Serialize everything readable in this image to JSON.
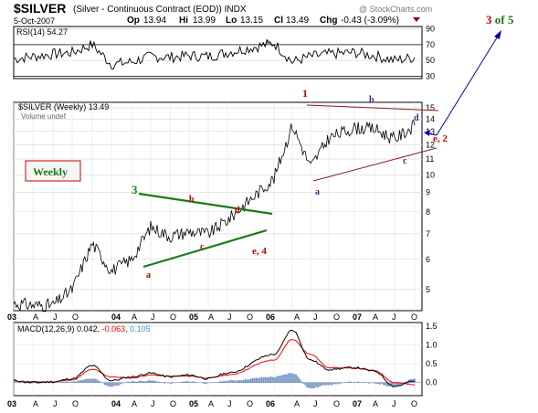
{
  "header": {
    "title": "$SILVER",
    "subtitle": "(Silver - Continuous Contract (EOD)) INDX",
    "watermark": "@ StockCharts.com",
    "date": "5-Oct-2007",
    "op_label": "Op",
    "op": "13.94",
    "hi_label": "Hi",
    "hi": "13.99",
    "lo_label": "Lo",
    "lo": "13.15",
    "cl_label": "Cl",
    "cl": "13.49",
    "chg_label": "Chg",
    "chg": "-0.43 (-3.09%)"
  },
  "rsi": {
    "legend": "RSI(14) 54.27",
    "ticks": [
      "90",
      "70",
      "50",
      "30"
    ]
  },
  "price": {
    "legend": "$SILVER (Weekly) 13.49",
    "volume_legend": "Volume undef",
    "ticks": [
      "15",
      "14",
      "13",
      "12",
      "11",
      "10",
      "9",
      "8",
      "7",
      "6",
      "5"
    ],
    "weekly_label": "Weekly"
  },
  "macd": {
    "legend_name": "MACD(12,26,9)",
    "legend_v1": "0.042,",
    "legend_v2": "-0.063,",
    "legend_v3": "0.105",
    "ticks": [
      "1.5",
      "1.0",
      "0.5",
      "0.0"
    ]
  },
  "xaxis": {
    "labels": [
      "03",
      "A",
      "J",
      "O",
      "04",
      "A",
      "J",
      "O",
      "05",
      "A",
      "J",
      "O",
      "06",
      "A",
      "J",
      "O",
      "07",
      "A",
      "J",
      "O"
    ]
  },
  "wave_labels": {
    "three": "3",
    "b1": "b",
    "d1": "d",
    "c1": "c",
    "a1": "a",
    "e4": "e, 4",
    "one": "1",
    "b2": "b",
    "d2": "d",
    "a2": "a",
    "c2": "c",
    "e2": "e, 2",
    "target_num": "3",
    "target_rest": " of 5"
  },
  "colors": {
    "wave_red": "#cc0000",
    "wave_green": "#1a7a1a",
    "wave_purple": "#551a8b",
    "arrow_blue": "#0000aa",
    "macd_red": "#ff0000",
    "macd_blue": "#3399cc",
    "hist": "#6f8fc0",
    "rsi_fill": "#5a9a5a"
  },
  "chart_data": [
    {
      "type": "line",
      "name": "RSI",
      "title": "RSI(14) 54.27",
      "ylim": [
        30,
        90
      ],
      "reference_lines": [
        70,
        30
      ],
      "x": [
        "03",
        "A",
        "J",
        "O",
        "04",
        "A",
        "J",
        "O",
        "05",
        "A",
        "J",
        "O",
        "06",
        "A",
        "J",
        "O",
        "07",
        "A",
        "J",
        "O"
      ],
      "values": [
        52,
        55,
        58,
        60,
        70,
        45,
        48,
        55,
        54,
        56,
        55,
        60,
        72,
        48,
        55,
        58,
        60,
        56,
        50,
        54
      ]
    },
    {
      "type": "line",
      "title": "$SILVER (Weekly) 13.49",
      "ylim": [
        4.4,
        15.5
      ],
      "log_scale": true,
      "x": [
        "03",
        "A",
        "J",
        "O",
        "04",
        "A",
        "J",
        "O",
        "05",
        "A",
        "J",
        "O",
        "06",
        "A",
        "J",
        "O",
        "07",
        "A",
        "J",
        "O"
      ],
      "values": [
        4.6,
        4.55,
        4.55,
        5.0,
        6.6,
        5.6,
        6.0,
        7.3,
        6.9,
        7.1,
        7.0,
        7.6,
        9.8,
        13.5,
        10.5,
        12.5,
        13.3,
        13.2,
        12.4,
        13.49
      ]
    },
    {
      "type": "line",
      "title": "MACD(12,26,9) 0.042, -0.063, 0.105",
      "ylim": [
        -0.35,
        1.6
      ],
      "x": [
        "03",
        "A",
        "J",
        "O",
        "04",
        "A",
        "J",
        "O",
        "05",
        "A",
        "J",
        "O",
        "06",
        "A",
        "J",
        "O",
        "07",
        "A",
        "J",
        "O"
      ],
      "series": [
        {
          "values": [
            0.05,
            0.0,
            0.02,
            0.1,
            0.45,
            0.05,
            0.15,
            0.25,
            0.15,
            0.2,
            0.1,
            0.25,
            0.75,
            1.4,
            0.6,
            0.35,
            0.4,
            0.3,
            -0.1,
            0.04
          ]
        },
        {
          "values": [
            0.04,
            0.02,
            0.02,
            0.07,
            0.35,
            0.15,
            0.12,
            0.2,
            0.17,
            0.17,
            0.12,
            0.2,
            0.6,
            1.15,
            0.75,
            0.4,
            0.38,
            0.32,
            0.0,
            -0.06
          ]
        },
        {
          "values": [
            0.01,
            -0.02,
            0.0,
            0.03,
            0.1,
            -0.1,
            0.03,
            0.05,
            -0.02,
            0.03,
            -0.02,
            0.05,
            0.15,
            0.25,
            -0.15,
            -0.05,
            0.02,
            -0.02,
            -0.1,
            0.105
          ]
        }
      ]
    }
  ]
}
